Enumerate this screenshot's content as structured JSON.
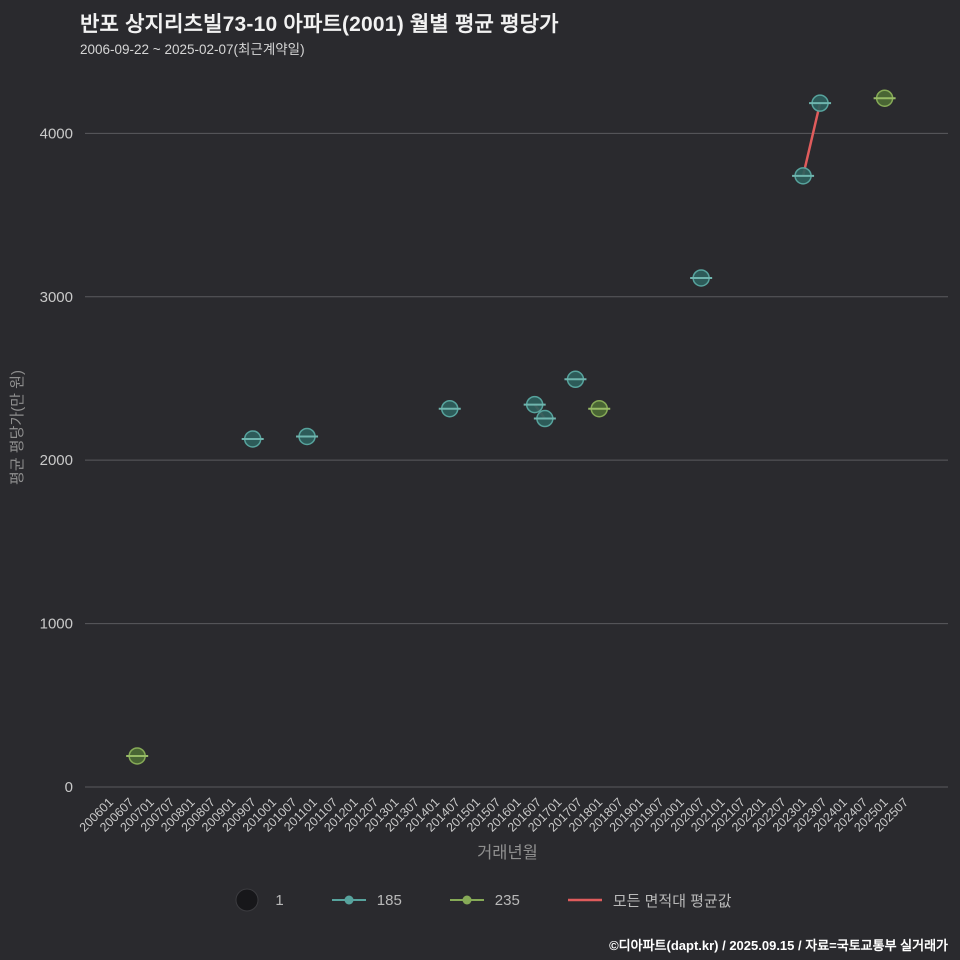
{
  "header": {
    "title": "반포 상지리츠빌73-10 아파트(2001) 월별 평균 평당가",
    "subtitle": "2006-09-22 ~ 2025-02-07(최근계약일)"
  },
  "footer": {
    "credit": "©디아파트(dapt.kr) / 2025.09.15 / 자료=국토교통부 실거래가"
  },
  "colors": {
    "background": "#2a2a2e",
    "grid": "#5a5a5f",
    "tick_label": "#c9c9c9",
    "axis_title": "#8f8f8f",
    "title": "#f2f2f2",
    "subtitle": "#d6d6d6",
    "teal": "#57a39d",
    "green": "#86aa57",
    "red": "#e05c5c"
  },
  "chart_data": {
    "type": "scatter",
    "title": "반포 상지리츠빌73-10 아파트(2001) 월별 평균 평당가",
    "xlabel": "거래년월",
    "ylabel": "평균 평당가(만 원)",
    "x_range": [
      "200601",
      "202507"
    ],
    "ylim": [
      0,
      4400
    ],
    "yticks": [
      0,
      1000,
      2000,
      3000,
      4000
    ],
    "xticks": [
      "200601",
      "200607",
      "200701",
      "200707",
      "200801",
      "200807",
      "200901",
      "200907",
      "201001",
      "201007",
      "201101",
      "201107",
      "201201",
      "201207",
      "201301",
      "201307",
      "201401",
      "201407",
      "201501",
      "201507",
      "201601",
      "201607",
      "201701",
      "201707",
      "201801",
      "201807",
      "201901",
      "201907",
      "202001",
      "202007",
      "202101",
      "202107",
      "202201",
      "202207",
      "202301",
      "202307",
      "202401",
      "202407",
      "202501",
      "202507"
    ],
    "grid": true,
    "legend_position": "bottom",
    "series": [
      {
        "name": "185",
        "marker": "line-dot",
        "color": "#57a39d",
        "fill": "#2e5f5d",
        "dash": "#6fb5ae",
        "points": [
          {
            "x": "200907",
            "y": 2130
          },
          {
            "x": "201011",
            "y": 2145
          },
          {
            "x": "201405",
            "y": 2315
          },
          {
            "x": "201606",
            "y": 2340
          },
          {
            "x": "201609",
            "y": 2255
          },
          {
            "x": "201706",
            "y": 2495
          },
          {
            "x": "202007",
            "y": 3115
          },
          {
            "x": "202301",
            "y": 3740
          },
          {
            "x": "202306",
            "y": 4185
          }
        ]
      },
      {
        "name": "235",
        "marker": "line-dot",
        "color": "#86aa57",
        "fill": "#4c6a35",
        "dash": "#97bb66",
        "points": [
          {
            "x": "200609",
            "y": 190
          },
          {
            "x": "201801",
            "y": 2315
          },
          {
            "x": "202501",
            "y": 4215
          }
        ]
      }
    ],
    "avg_line": {
      "name": "모든 면적대 평균값",
      "color": "#e05c5c",
      "segments": [
        [
          {
            "x": "201606",
            "y": 2340
          },
          {
            "x": "201609",
            "y": 2255
          }
        ],
        [
          {
            "x": "202301",
            "y": 3740
          },
          {
            "x": "202306",
            "y": 4185
          }
        ]
      ]
    }
  },
  "legend": {
    "items": [
      {
        "label": "1",
        "type": "bubble",
        "color": "#17171a",
        "ring": "#3c3c40"
      },
      {
        "label": "185",
        "type": "line-dot",
        "color": "#57a39d"
      },
      {
        "label": "235",
        "type": "line-dot",
        "color": "#86aa57"
      },
      {
        "label": "모든 면적대 평균값",
        "type": "line",
        "color": "#e05c5c"
      }
    ]
  }
}
